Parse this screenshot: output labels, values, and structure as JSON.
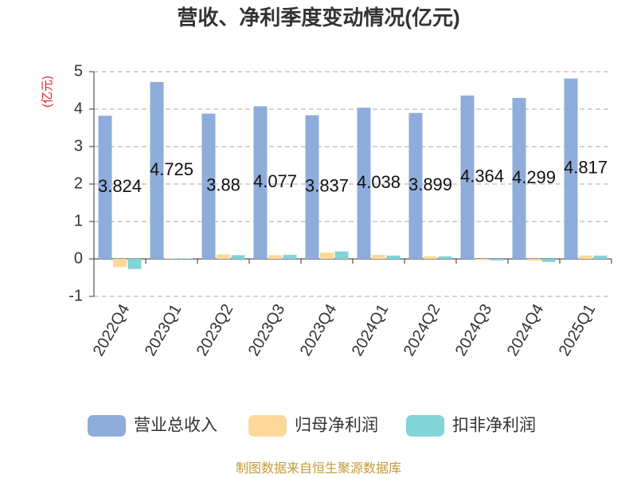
{
  "chart_data": {
    "type": "bar",
    "title": "营收、净利季度变动情况(亿元)",
    "y_label": "(亿元)",
    "source": "制图数据来自恒生聚源数据库",
    "categories": [
      "2022Q4",
      "2023Q1",
      "2023Q2",
      "2023Q3",
      "2023Q4",
      "2024Q1",
      "2024Q2",
      "2024Q3",
      "2024Q4",
      "2025Q1"
    ],
    "series": [
      {
        "name": "营业总收入",
        "color": "#8eaddb",
        "values": [
          3.824,
          4.725,
          3.88,
          4.077,
          3.837,
          4.038,
          3.899,
          4.364,
          4.299,
          4.817
        ],
        "show_labels": true
      },
      {
        "name": "归母净利润",
        "color": "#fdd89b",
        "values": [
          -0.22,
          0.01,
          0.12,
          0.1,
          0.17,
          0.11,
          0.07,
          -0.03,
          -0.05,
          0.09
        ]
      },
      {
        "name": "扣非净利润",
        "color": "#81d4d7",
        "values": [
          -0.27,
          0.01,
          0.1,
          0.11,
          0.2,
          0.09,
          0.07,
          -0.04,
          -0.08,
          0.09
        ]
      }
    ],
    "ylim": [
      -1,
      5
    ],
    "yticks": [
      -1,
      0,
      1,
      2,
      3,
      4,
      5
    ],
    "grid": true
  }
}
